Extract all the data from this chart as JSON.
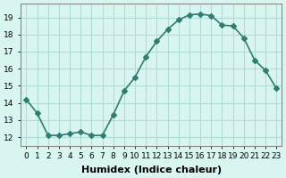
{
  "xlabel": "Humidex (Indice chaleur)",
  "x": [
    0,
    1,
    2,
    3,
    4,
    5,
    6,
    7,
    8,
    9,
    10,
    11,
    12,
    13,
    14,
    15,
    16,
    17,
    18,
    19,
    20,
    21,
    22,
    23
  ],
  "y": [
    14.2,
    13.4,
    12.1,
    12.1,
    12.2,
    12.3,
    12.1,
    12.1,
    13.3,
    14.7,
    15.5,
    16.7,
    17.6,
    18.3,
    18.85,
    19.15,
    19.2,
    19.1,
    18.55,
    18.5,
    17.8,
    16.5,
    15.9,
    14.85
  ],
  "line_color": "#2e7d6e",
  "marker": "D",
  "marker_size": 3,
  "line_width": 1.2,
  "background_color": "#d9f5f0",
  "grid_color": "#b0ddd5",
  "ylim": [
    11.5,
    19.8
  ],
  "xlim": [
    -0.5,
    23.5
  ],
  "yticks": [
    12,
    13,
    14,
    15,
    16,
    17,
    18,
    19
  ],
  "xtick_labels": [
    "0",
    "1",
    "2",
    "3",
    "4",
    "5",
    "6",
    "7",
    "8",
    "9",
    "10",
    "11",
    "12",
    "13",
    "14",
    "15",
    "16",
    "17",
    "18",
    "19",
    "20",
    "21",
    "22",
    "23"
  ],
  "xlabel_fontsize": 8,
  "tick_fontsize": 6.5,
  "label_color": "#000000"
}
